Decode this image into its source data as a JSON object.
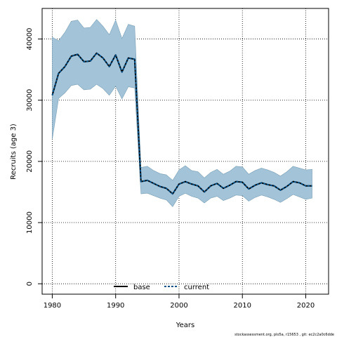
{
  "chart_data": {
    "type": "line",
    "title": "",
    "xlabel": "Years",
    "ylabel": "Recruits (age 3)",
    "xlim": [
      1978.4,
      2023.6
    ],
    "ylim": [
      -1700,
      45000
    ],
    "x_ticks": [
      1980,
      1990,
      2000,
      2010,
      2020
    ],
    "y_ticks": [
      0,
      10000,
      20000,
      30000,
      40000
    ],
    "grid": true,
    "legend_position": "bottom-center",
    "x": [
      1980,
      1981,
      1982,
      1983,
      1984,
      1985,
      1986,
      1987,
      1988,
      1989,
      1990,
      1991,
      1992,
      1993,
      1994,
      1995,
      1996,
      1997,
      1998,
      1999,
      2000,
      2001,
      2002,
      2003,
      2004,
      2005,
      2006,
      2007,
      2008,
      2009,
      2010,
      2011,
      2012,
      2013,
      2014,
      2015,
      2016,
      2017,
      2018,
      2019,
      2020,
      2021
    ],
    "series": [
      {
        "name": "base",
        "style": "solid",
        "color": "#000000",
        "values": [
          30800,
          34400,
          35500,
          37200,
          37500,
          36300,
          36400,
          37700,
          36900,
          35500,
          37400,
          34600,
          36900,
          36700,
          16700,
          16900,
          16400,
          15900,
          15600,
          14700,
          16300,
          16700,
          16300,
          16000,
          15000,
          16000,
          16400,
          15600,
          16100,
          16700,
          16600,
          15500,
          16100,
          16500,
          16200,
          16000,
          15300,
          15900,
          16700,
          16500,
          16000,
          16000
        ]
      },
      {
        "name": "current",
        "style": "dashed",
        "color": "#00518a",
        "values": [
          30800,
          34400,
          35500,
          37200,
          37500,
          36300,
          36400,
          37700,
          36900,
          35500,
          37400,
          34600,
          36900,
          36700,
          16700,
          16900,
          16400,
          15900,
          15600,
          14700,
          16300,
          16700,
          16300,
          16000,
          15000,
          16000,
          16400,
          15600,
          16100,
          16700,
          16600,
          15500,
          16100,
          16500,
          16200,
          16000,
          15300,
          15900,
          16700,
          16500,
          16000,
          16000
        ]
      }
    ],
    "ci_band": {
      "color": "#a3c4d8",
      "upper": [
        40300,
        39700,
        41100,
        42900,
        43100,
        41800,
        41900,
        43200,
        42100,
        40700,
        43100,
        40100,
        42400,
        42100,
        19000,
        19200,
        18500,
        18000,
        17800,
        16900,
        18600,
        19300,
        18500,
        18300,
        17300,
        18200,
        18700,
        17900,
        18400,
        19200,
        19100,
        17900,
        18500,
        18900,
        18600,
        18200,
        17600,
        18300,
        19200,
        18900,
        18600,
        18700
      ],
      "lower": [
        23600,
        30300,
        31200,
        32400,
        32600,
        31700,
        31800,
        32600,
        31900,
        30800,
        32300,
        30200,
        32200,
        32000,
        14700,
        14800,
        14400,
        14000,
        13700,
        12600,
        14300,
        14800,
        14300,
        14000,
        13200,
        14000,
        14300,
        13600,
        14000,
        14500,
        14400,
        13500,
        14100,
        14500,
        14200,
        13800,
        13300,
        13900,
        14600,
        14200,
        13800,
        14000
      ]
    },
    "footer": "stockassessment.org, plo5a, r15653 ,  git: ec2c2a0c6dde"
  }
}
